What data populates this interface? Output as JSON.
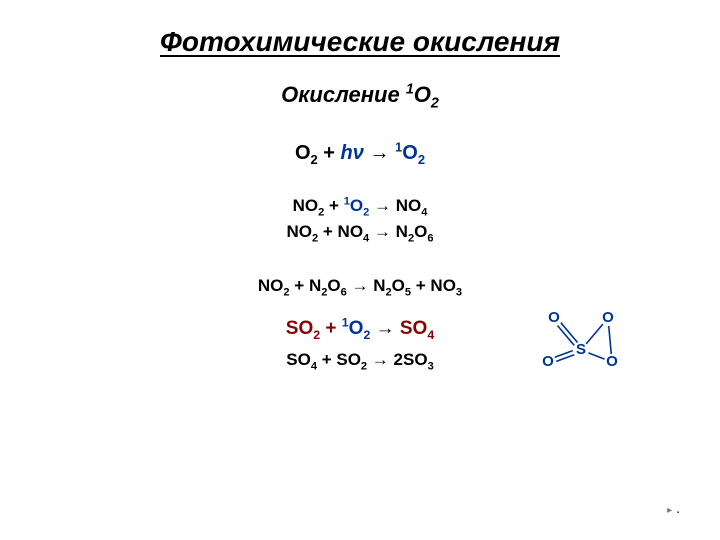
{
  "colors": {
    "background": "#ffffff",
    "text_primary": "#000000",
    "accent_blue": "#003399",
    "accent_dark_red": "#8B0000",
    "molecule_bond": "#003399"
  },
  "typography": {
    "title_fontsize": 28,
    "subtitle_fontsize": 22,
    "equation_main_fontsize": 20,
    "equation_small_fontsize": 17,
    "font_family": "Arial"
  },
  "title": "Фотохимические окисления",
  "subtitle_prefix": "Окисление ",
  "subtitle_species_sup": "1",
  "subtitle_species_base": "O",
  "subtitle_species_sub": "2",
  "eq1": {
    "lhs_base": "O",
    "lhs_sub": "2",
    "plus": " + ",
    "hv": "hν",
    "arrow": " → ",
    "rhs_sup": "1",
    "rhs_base": "O",
    "rhs_sub": "2"
  },
  "eq2": {
    "a_base": "NO",
    "a_sub": "2",
    "plus": " + ",
    "b_sup": "1",
    "b_base": "O",
    "b_sub": "2",
    "arrow": " → ",
    "c_base": "NO",
    "c_sub": "4"
  },
  "eq3": {
    "a_base": "NO",
    "a_sub": "2",
    "plus": " + ",
    "b_base": "NO",
    "b_sub": "4",
    "arrow": " → ",
    "c_base": "N",
    "c_sub": "2",
    "d_base": "O",
    "d_sub": "6"
  },
  "eq4": {
    "a_base": "NO",
    "a_sub": "2",
    "plus1": " + ",
    "b_base": "N",
    "b_sub": "2",
    "c_base": "O",
    "c_sub": "6",
    "arrow": " → ",
    "d_base": "N",
    "d_sub": "2",
    "e_base": "O",
    "e_sub": "5",
    "plus2": " + ",
    "f_base": "NO",
    "f_sub": "3"
  },
  "eq5": {
    "a_base": "SO",
    "a_sub": "2",
    "plus": " + ",
    "b_sup": "1",
    "b_base": "O",
    "b_sub": "2",
    "arrow": " → ",
    "c_base": "SO",
    "c_sub": "4"
  },
  "eq6": {
    "a_base": "SO",
    "a_sub": "4",
    "plus": " + ",
    "b_base": "SO",
    "b_sub": "2",
    "arrow": " → ",
    "c_coef": "2",
    "c_base": "SO",
    "c_sub": "3"
  },
  "molecule": {
    "center_label": "S",
    "atom_labels": [
      "O",
      "O",
      "O",
      "O"
    ],
    "bond_color": "#003399",
    "label_color": "#003399",
    "label_fontsize": 15,
    "center_fontsize": 15,
    "double_bond_gap": 2.2
  },
  "footer_mark": "."
}
